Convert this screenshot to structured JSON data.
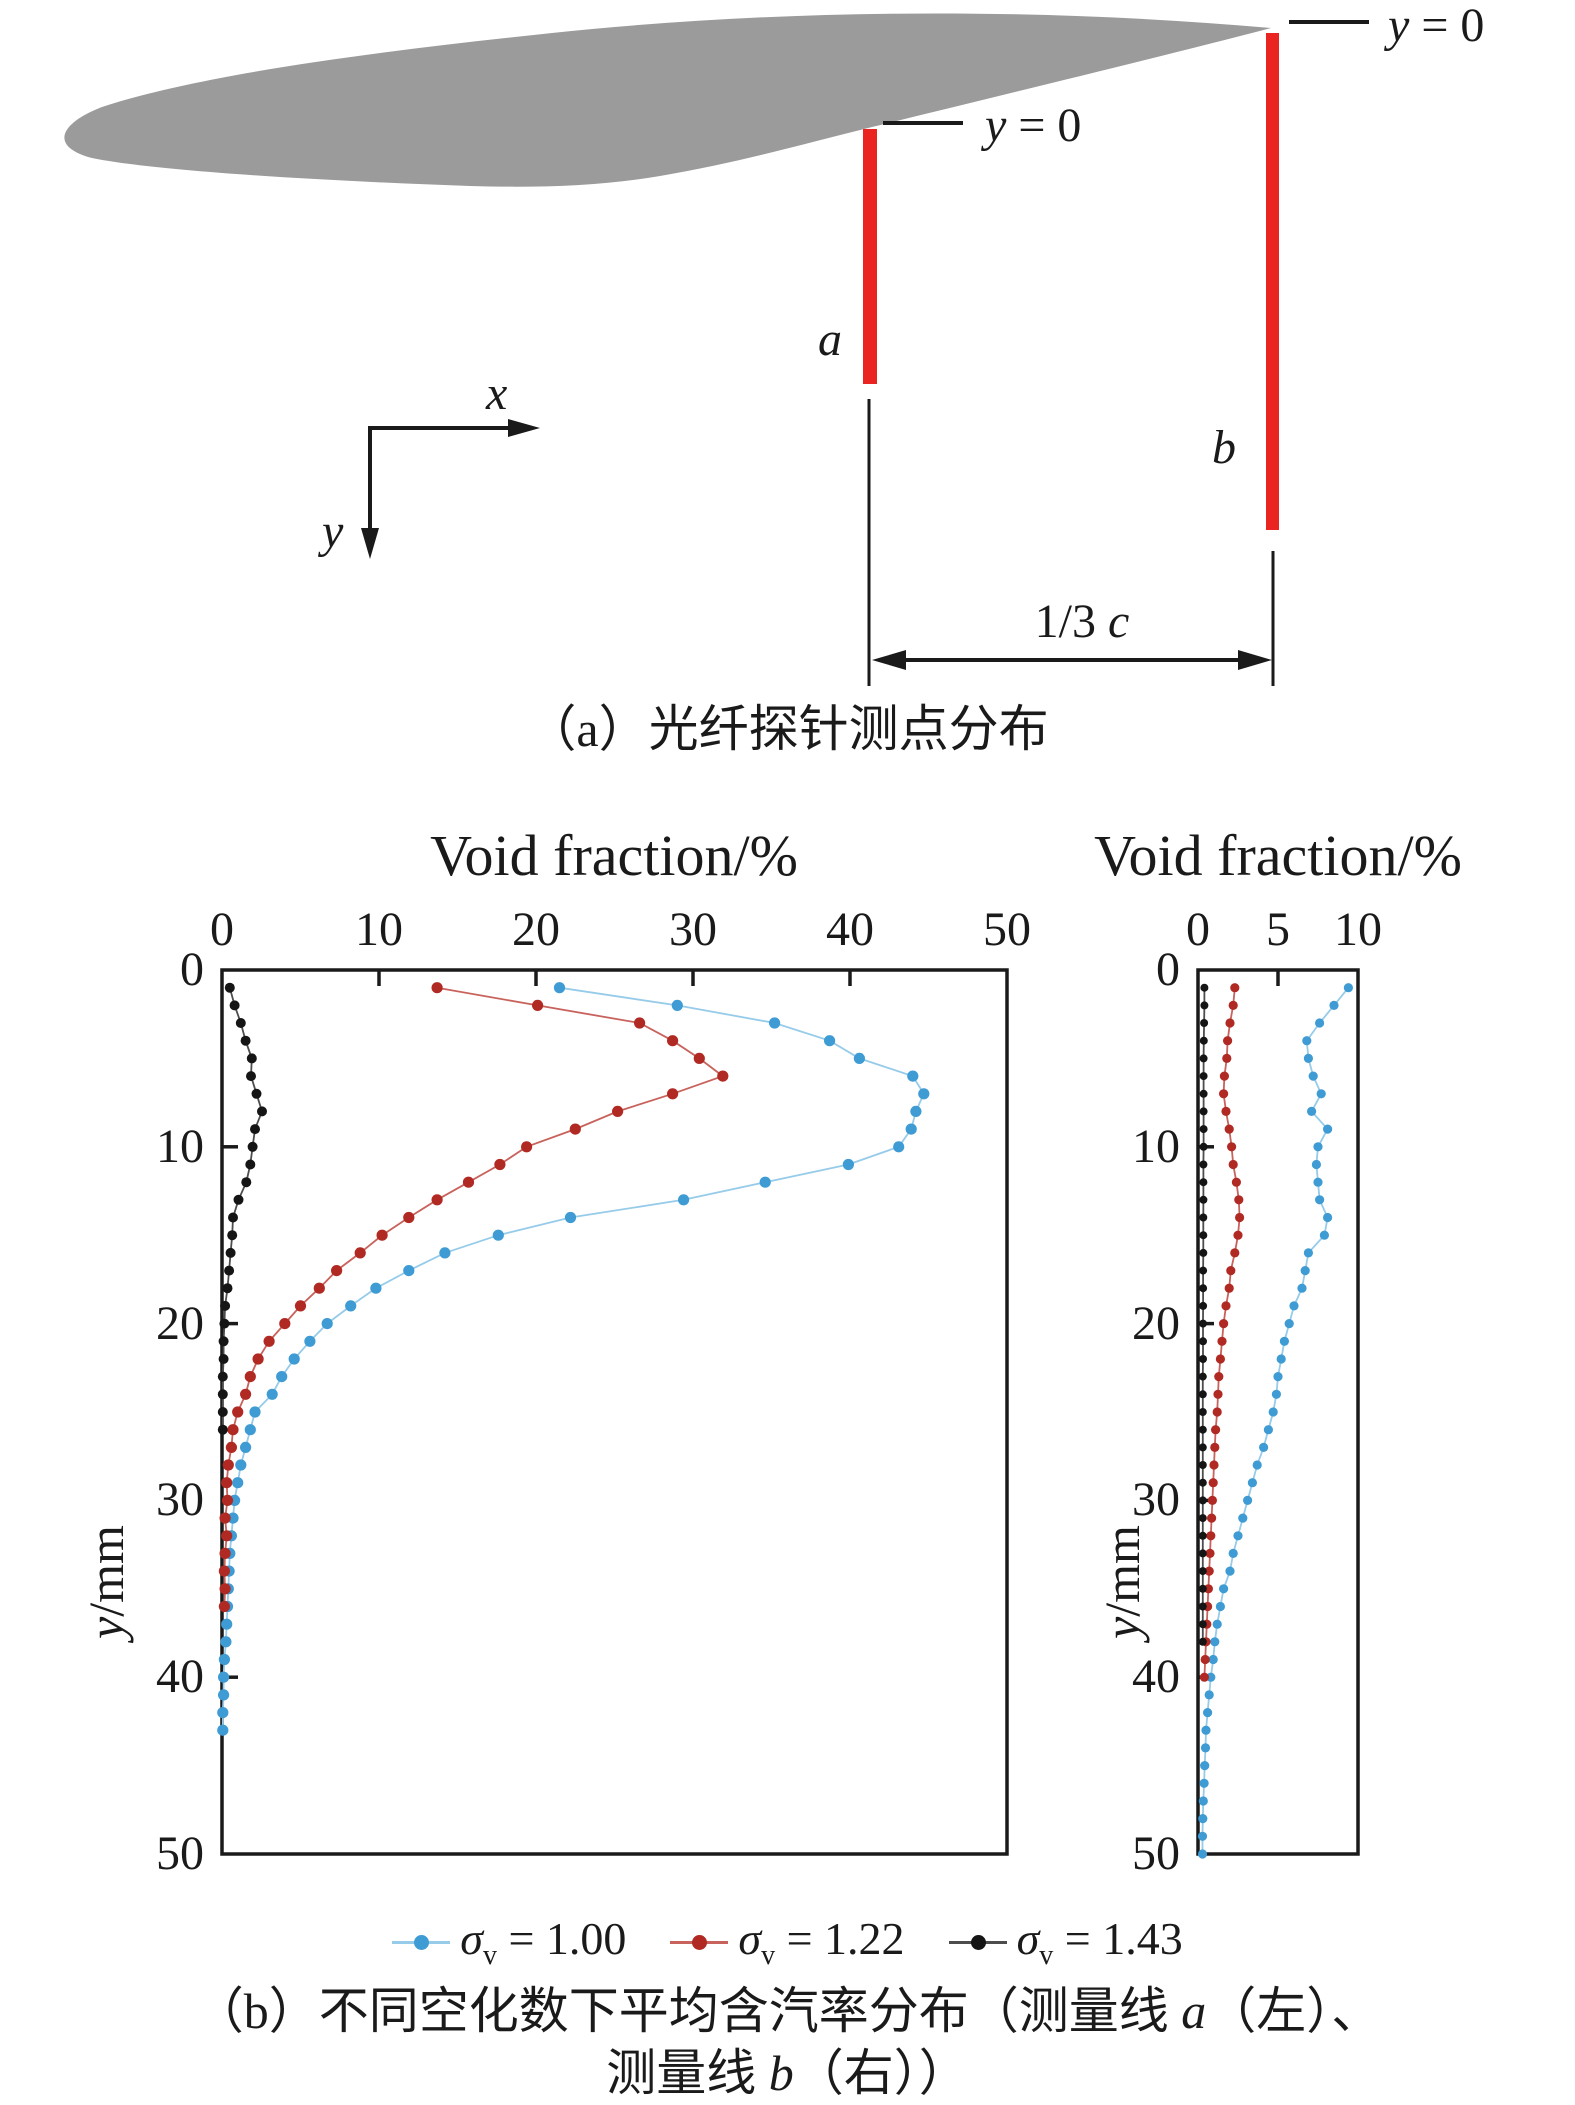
{
  "diagram": {
    "caption_a": "（a）光纤探针测点分布",
    "label_y0_a": {
      "var": "y",
      "rest": " = 0"
    },
    "label_y0_b": {
      "var": "y",
      "rest": " = 0"
    },
    "label_line_a": "a",
    "label_line_b": "b",
    "label_axis_x": "x",
    "label_axis_y": "y",
    "label_dimension": {
      "pre": "1/3 ",
      "var": "c"
    },
    "foil_color": "#9b9b9b",
    "probe_color": "#ea2420"
  },
  "charts": {
    "ylabel": {
      "var": "y",
      "rest": "/mm"
    },
    "title_left": "Void fraction/%",
    "title_right": "Void fraction/%",
    "legend": [
      {
        "sym": "σ",
        "sub": "v",
        "val": "= 1.00",
        "dot_color": "#3f9bd3",
        "line_color": "#96cbe9"
      },
      {
        "sym": "σ",
        "sub": "v",
        "val": "= 1.22",
        "dot_color": "#b02a23",
        "line_color": "#c8625c"
      },
      {
        "sym": "σ",
        "sub": "v",
        "val": "= 1.43",
        "dot_color": "#151515",
        "line_color": "#4d4d4d"
      }
    ],
    "caption_b_line1": {
      "pre": "（b）不同空化数下平均含汽率分布（测量线 ",
      "var": "a",
      "post": "（左）、"
    },
    "caption_b_line2": {
      "pre": "测量线 ",
      "var": "b",
      "post": "（右））"
    }
  },
  "chart_data": [
    {
      "type": "line",
      "id": "left",
      "measurement_line": "a",
      "title": "Void fraction/%",
      "xlabel": "Void fraction/%",
      "ylabel": "y/mm",
      "xlim": [
        0,
        50
      ],
      "ylim": [
        0,
        50
      ],
      "x_ticks": [
        0,
        10,
        20,
        30,
        40,
        50
      ],
      "y_ticks": [
        0,
        10,
        20,
        30,
        40,
        50
      ],
      "grid": false,
      "x_axis_position": "top",
      "y_axis_direction": "downward (depth)",
      "series": [
        {
          "name": "σv = 1.00",
          "dot_color": "#3f9bd3",
          "line_color": "#96cbe9",
          "y_start_mm": 1,
          "y_step_mm": 1,
          "void_fraction_pct": [
            21.5,
            29.0,
            35.2,
            38.7,
            40.6,
            44.0,
            44.7,
            44.2,
            43.9,
            43.1,
            39.9,
            34.6,
            29.4,
            22.2,
            17.6,
            14.2,
            11.9,
            9.8,
            8.2,
            6.7,
            5.6,
            4.6,
            3.8,
            3.2,
            2.1,
            1.8,
            1.5,
            1.2,
            1.0,
            0.8,
            0.7,
            0.6,
            0.5,
            0.45,
            0.4,
            0.35,
            0.3,
            0.25,
            0.15,
            0.1,
            0.1,
            0.05,
            0.05
          ]
        },
        {
          "name": "σv = 1.22",
          "dot_color": "#b02a23",
          "line_color": "#c8625c",
          "y_start_mm": 1,
          "y_step_mm": 1,
          "void_fraction_pct": [
            13.7,
            20.1,
            26.6,
            28.7,
            30.4,
            31.9,
            28.7,
            25.2,
            22.5,
            19.4,
            17.7,
            15.7,
            13.7,
            11.9,
            10.2,
            8.8,
            7.3,
            6.2,
            5.0,
            4.0,
            3.0,
            2.3,
            1.8,
            1.5,
            1.0,
            0.7,
            0.6,
            0.4,
            0.3,
            0.35,
            0.2,
            0.3,
            0.2,
            0.15,
            0.2,
            0.15
          ]
        },
        {
          "name": "σv = 1.43",
          "dot_color": "#151515",
          "line_color": "#4d4d4d",
          "y_start_mm": 1,
          "y_step_mm": 1,
          "void_fraction_pct": [
            0.5,
            0.8,
            1.2,
            1.5,
            1.9,
            1.85,
            2.2,
            2.55,
            2.1,
            1.95,
            1.8,
            1.55,
            1.05,
            0.7,
            0.65,
            0.55,
            0.45,
            0.35,
            0.2,
            0.15,
            0.1,
            0.1,
            0.05,
            0.05,
            0.05,
            0.05
          ]
        }
      ]
    },
    {
      "type": "line",
      "id": "right",
      "measurement_line": "b",
      "title": "Void fraction/%",
      "xlabel": "Void fraction/%",
      "ylabel": "y/mm",
      "xlim": [
        0,
        10
      ],
      "ylim": [
        0,
        50
      ],
      "x_ticks": [
        0,
        5,
        10
      ],
      "y_ticks": [
        0,
        10,
        20,
        30,
        40,
        50
      ],
      "grid": false,
      "x_axis_position": "top",
      "y_axis_direction": "downward (depth)",
      "series": [
        {
          "name": "σv = 1.00",
          "dot_color": "#3f9bd3",
          "line_color": "#96cbe9",
          "y_start_mm": 1,
          "y_step_mm": 1,
          "void_fraction_pct": [
            9.4,
            8.5,
            7.6,
            6.8,
            6.9,
            7.2,
            7.7,
            7.1,
            8.1,
            7.5,
            7.4,
            7.5,
            7.6,
            8.1,
            7.9,
            6.9,
            6.7,
            6.5,
            6.0,
            5.7,
            5.4,
            5.2,
            5.0,
            4.9,
            4.7,
            4.4,
            4.1,
            3.7,
            3.4,
            3.1,
            2.8,
            2.5,
            2.2,
            2.0,
            1.6,
            1.4,
            1.2,
            1.05,
            0.95,
            0.8,
            0.7,
            0.6,
            0.5,
            0.47,
            0.42,
            0.38,
            0.33,
            0.3,
            0.28,
            0.28
          ]
        },
        {
          "name": "σv = 1.22",
          "dot_color": "#b02a23",
          "line_color": "#c8625c",
          "y_start_mm": 1,
          "y_step_mm": 1,
          "void_fraction_pct": [
            2.3,
            2.2,
            2.0,
            1.85,
            1.8,
            1.65,
            1.6,
            1.75,
            1.95,
            2.1,
            2.2,
            2.4,
            2.55,
            2.6,
            2.5,
            2.3,
            2.05,
            1.95,
            1.75,
            1.6,
            1.5,
            1.4,
            1.3,
            1.25,
            1.2,
            1.1,
            1.05,
            1.0,
            0.95,
            0.9,
            0.85,
            0.8,
            0.75,
            0.7,
            0.65,
            0.6,
            0.55,
            0.5,
            0.45,
            0.4
          ]
        },
        {
          "name": "σv = 1.43",
          "dot_color": "#151515",
          "line_color": "#4d4d4d",
          "y_start_mm": 1,
          "y_step_mm": 1,
          "void_fraction_pct": [
            0.4,
            0.4,
            0.38,
            0.36,
            0.35,
            0.35,
            0.35,
            0.35,
            0.35,
            0.35,
            0.34,
            0.34,
            0.34,
            0.33,
            0.33,
            0.33,
            0.32,
            0.32,
            0.32,
            0.31,
            0.31,
            0.31,
            0.3,
            0.3,
            0.3,
            0.3,
            0.3,
            0.3,
            0.3,
            0.3,
            0.3,
            0.3,
            0.3,
            0.3,
            0.3,
            0.3,
            0.3,
            0.3
          ]
        }
      ]
    }
  ]
}
